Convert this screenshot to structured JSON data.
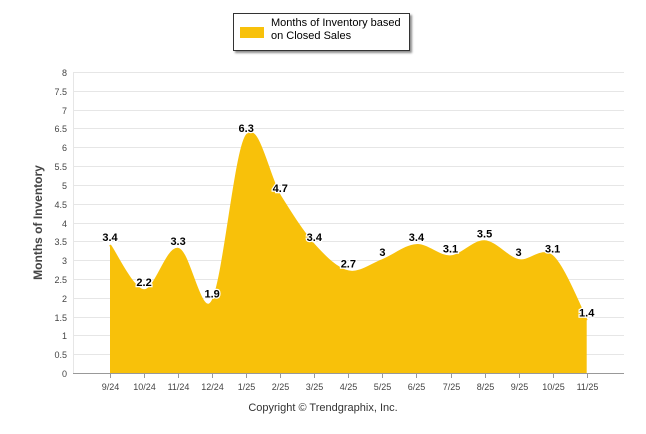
{
  "colors": {
    "fill": "#F8C10A",
    "grid": "#e6e6e6",
    "axis": "#999999"
  },
  "footer": {
    "copyright": "Copyright © Trendgraphix, Inc."
  },
  "chart_data": {
    "type": "area",
    "title": "",
    "legend": [
      "Months of Inventory based on Closed Sales"
    ],
    "legend_position": "top-center",
    "xlabel": "",
    "ylabel": "Months of Inventory",
    "ylim": [
      0,
      8
    ],
    "ytick_step": 0.5,
    "yticks": [
      "0",
      "0.5",
      "1",
      "1.5",
      "2",
      "2.5",
      "3",
      "3.5",
      "4",
      "4.5",
      "5",
      "5.5",
      "6",
      "6.5",
      "7",
      "7.5",
      "8"
    ],
    "grid": true,
    "categories": [
      "9/24",
      "10/24",
      "11/24",
      "12/24",
      "1/25",
      "2/25",
      "3/25",
      "4/25",
      "5/25",
      "6/25",
      "7/25",
      "8/25",
      "9/25",
      "10/25",
      "11/25"
    ],
    "series": [
      {
        "name": "Months of Inventory based on Closed Sales",
        "values": [
          3.4,
          2.2,
          3.3,
          1.9,
          6.3,
          4.7,
          3.4,
          2.7,
          3,
          3.4,
          3.1,
          3.5,
          3,
          3.1,
          1.4
        ],
        "labels": [
          "3.4",
          "2.2",
          "3.3",
          "1.9",
          "6.3",
          "4.7",
          "3.4",
          "2.7",
          "3",
          "3.4",
          "3.1",
          "3.5",
          "3",
          "3.1",
          "1.4"
        ]
      }
    ]
  }
}
